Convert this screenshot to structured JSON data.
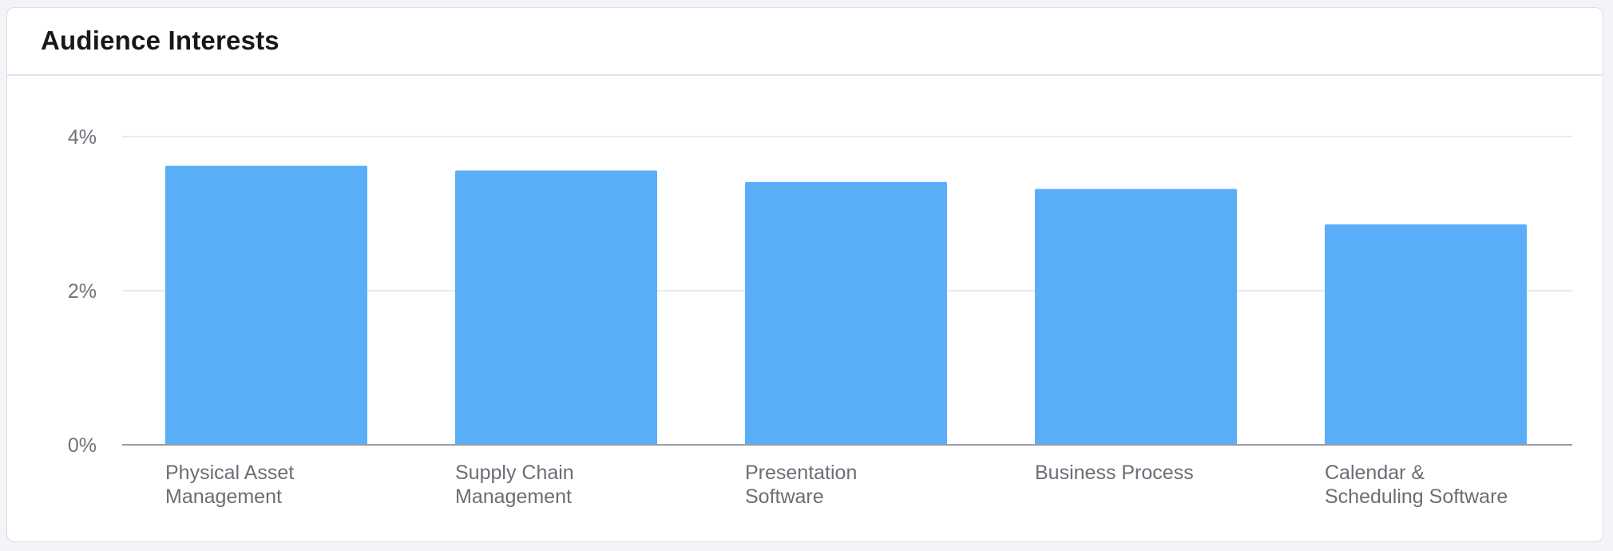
{
  "card": {
    "title": "Audience Interests"
  },
  "colors": {
    "bar": "#5aaef7",
    "grid": "#e2e3e8",
    "axis": "#9a9ba3",
    "tick_text": "#707179"
  },
  "chart_data": {
    "type": "bar",
    "title": "Audience Interests",
    "xlabel": "",
    "ylabel": "",
    "categories": [
      [
        "Physical Asset",
        "Management"
      ],
      [
        "Supply Chain",
        "Management"
      ],
      [
        "Presentation",
        "Software"
      ],
      [
        "Business Process"
      ],
      [
        "Calendar &",
        "Scheduling Software"
      ]
    ],
    "values": [
      3.62,
      3.56,
      3.41,
      3.32,
      2.86
    ],
    "ylim": [
      0,
      4
    ],
    "yticks": [
      {
        "value": 0,
        "label": "0%"
      },
      {
        "value": 2,
        "label": "2%"
      },
      {
        "value": 4,
        "label": "4%"
      }
    ],
    "grid": true,
    "legend": "none"
  }
}
